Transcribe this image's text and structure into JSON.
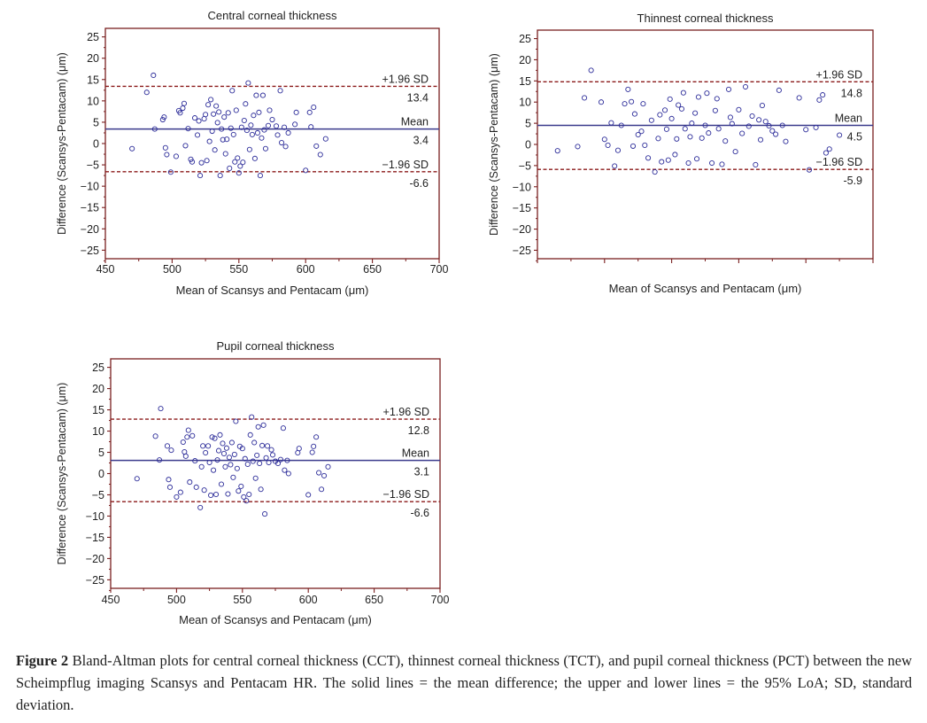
{
  "caption": {
    "label": "Figure 2",
    "text": "Bland-Altman plots for central corneal thickness (CCT), thinnest corneal thickness (TCT), and pupil corneal thickness (PCT) between the new Scheimpflug imaging Scansys and Pentacam HR. The solid lines = the mean difference; the upper and lower lines = the 95% LoA; SD, standard deviation."
  },
  "colors": {
    "frame": "#7a1f1f",
    "mean_line": "#3a3a8c",
    "loa_line": "#8b1a1a",
    "point": "#2e2e9a"
  },
  "chart_data": [
    {
      "type": "scatter",
      "title": "Central corneal thickness",
      "xlabel": "Mean of Scansys and Pentacam (μm)",
      "ylabel": "Difference (Scansys-Pentacam) (μm)",
      "xlim": [
        450,
        700
      ],
      "ylim": [
        -27,
        27
      ],
      "xticks": [
        450,
        500,
        550,
        600,
        650,
        700
      ],
      "xtick_labels": [
        "450",
        "500",
        "550",
        "600",
        "650",
        "700"
      ],
      "yticks": [
        25,
        20,
        15,
        10,
        5,
        0,
        -5,
        -10,
        -15,
        -20,
        -25
      ],
      "ytick_labels": [
        "25",
        "20",
        "15",
        "10",
        "5",
        "0",
        "−5",
        "−10",
        "−15",
        "−20",
        "−25"
      ],
      "grid": false,
      "lines": [
        {
          "kind": "upper",
          "y": 13.4,
          "label": "+1.96 SD",
          "value_label": "13.4"
        },
        {
          "kind": "mean",
          "y": 3.4,
          "label": "Mean",
          "value_label": "3.4"
        },
        {
          "kind": "lower",
          "y": -6.6,
          "label": "−1.96 SD",
          "value_label": "-6.6"
        }
      ],
      "points": [
        [
          470,
          -1.2
        ],
        [
          481,
          12
        ],
        [
          486,
          16
        ],
        [
          487,
          3.4
        ],
        [
          493,
          5.6
        ],
        [
          494,
          6.2
        ],
        [
          495,
          -1
        ],
        [
          496,
          -2.6
        ],
        [
          499,
          -6.7
        ],
        [
          503,
          -3
        ],
        [
          505,
          7.7
        ],
        [
          506,
          7.2
        ],
        [
          508,
          8.3
        ],
        [
          509,
          9.4
        ],
        [
          510,
          -0.5
        ],
        [
          512,
          3.5
        ],
        [
          514,
          -3.7
        ],
        [
          515,
          -4.3
        ],
        [
          517,
          6
        ],
        [
          519,
          2
        ],
        [
          520,
          5.3
        ],
        [
          521,
          -7.5
        ],
        [
          522,
          -4.5
        ],
        [
          524,
          5.8
        ],
        [
          525,
          6.8
        ],
        [
          526,
          -4
        ],
        [
          527,
          9.1
        ],
        [
          528,
          0.5
        ],
        [
          529,
          10.3
        ],
        [
          530,
          2.9
        ],
        [
          531,
          6.9
        ],
        [
          532,
          -1.5
        ],
        [
          533,
          8.8
        ],
        [
          534,
          4.9
        ],
        [
          535,
          7.4
        ],
        [
          536,
          -7.5
        ],
        [
          537,
          3.4
        ],
        [
          538,
          0.9
        ],
        [
          539,
          6.2
        ],
        [
          540,
          -2.4
        ],
        [
          541,
          1
        ],
        [
          542,
          7.2
        ],
        [
          543,
          -5.8
        ],
        [
          544,
          3.6
        ],
        [
          545,
          12.4
        ],
        [
          546,
          2.1
        ],
        [
          547,
          -4.3
        ],
        [
          548,
          7.8
        ],
        [
          549,
          -3.4
        ],
        [
          550,
          -6.9
        ],
        [
          551,
          -5.3
        ],
        [
          552,
          3.8
        ],
        [
          553,
          -4.4
        ],
        [
          554,
          5.4
        ],
        [
          555,
          9.3
        ],
        [
          556,
          3.1
        ],
        [
          557,
          14.2
        ],
        [
          558,
          -1.4
        ],
        [
          559,
          4.3
        ],
        [
          560,
          2.1
        ],
        [
          561,
          6.6
        ],
        [
          562,
          -3.5
        ],
        [
          563,
          11.3
        ],
        [
          564,
          2.5
        ],
        [
          565,
          7.3
        ],
        [
          566,
          -7.5
        ],
        [
          567,
          1.3
        ],
        [
          568,
          11.3
        ],
        [
          569,
          3.2
        ],
        [
          570,
          -1.2
        ],
        [
          572,
          4.2
        ],
        [
          573,
          7.8
        ],
        [
          575,
          5.6
        ],
        [
          578,
          4.1
        ],
        [
          579,
          2
        ],
        [
          581,
          12.4
        ],
        [
          582,
          0.2
        ],
        [
          584,
          3.8
        ],
        [
          585,
          -0.7
        ],
        [
          587,
          2.5
        ],
        [
          592,
          4.5
        ],
        [
          593,
          7.3
        ],
        [
          600,
          -6.3
        ],
        [
          603,
          7.3
        ],
        [
          604,
          3.9
        ],
        [
          606,
          8.5
        ],
        [
          608,
          -0.6
        ],
        [
          611,
          -2.6
        ],
        [
          615,
          1.1
        ]
      ]
    },
    {
      "type": "scatter",
      "title": "Thinnest corneal thickness",
      "xlabel": "Mean of Scansys and Pentacam (μm)",
      "ylabel": "Difference (Scansys-Pentacam) (μm)",
      "xlim": [
        0,
        1
      ],
      "ylim": [
        -27,
        27
      ],
      "xticks": [
        0,
        0.2,
        0.4,
        0.6,
        0.8,
        1.0
      ],
      "xtick_labels": [],
      "yticks": [
        25,
        20,
        15,
        10,
        5,
        0,
        -5,
        -10,
        -15,
        -20,
        -25
      ],
      "ytick_labels": [
        "25",
        "20",
        "15",
        "10",
        "5",
        "0",
        "−5",
        "−10",
        "−15",
        "−20",
        "−25"
      ],
      "grid": false,
      "lines": [
        {
          "kind": "upper",
          "y": 14.8,
          "label": "+1.96 SD",
          "value_label": "14.8"
        },
        {
          "kind": "mean",
          "y": 4.5,
          "label": "Mean",
          "value_label": "4.5"
        },
        {
          "kind": "lower",
          "y": -5.9,
          "label": "−1.96 SD",
          "value_label": "-5.9"
        }
      ],
      "points": [
        [
          0.06,
          -1.5
        ],
        [
          0.12,
          -0.5
        ],
        [
          0.14,
          11
        ],
        [
          0.16,
          17.5
        ],
        [
          0.19,
          10
        ],
        [
          0.2,
          1.2
        ],
        [
          0.21,
          -0.2
        ],
        [
          0.22,
          5.1
        ],
        [
          0.23,
          -5.1
        ],
        [
          0.24,
          -1.4
        ],
        [
          0.25,
          4.5
        ],
        [
          0.26,
          9.6
        ],
        [
          0.27,
          13
        ],
        [
          0.28,
          10.1
        ],
        [
          0.285,
          -0.4
        ],
        [
          0.29,
          7.2
        ],
        [
          0.3,
          2.3
        ],
        [
          0.31,
          3.1
        ],
        [
          0.315,
          9.6
        ],
        [
          0.32,
          -0.2
        ],
        [
          0.33,
          -3.2
        ],
        [
          0.34,
          5.7
        ],
        [
          0.35,
          -6.5
        ],
        [
          0.36,
          1.4
        ],
        [
          0.365,
          7
        ],
        [
          0.37,
          -4.1
        ],
        [
          0.38,
          8.1
        ],
        [
          0.385,
          3.6
        ],
        [
          0.39,
          -3.7
        ],
        [
          0.395,
          10.7
        ],
        [
          0.4,
          6.1
        ],
        [
          0.41,
          -2.4
        ],
        [
          0.415,
          1.3
        ],
        [
          0.42,
          9.3
        ],
        [
          0.43,
          8.4
        ],
        [
          0.435,
          12.2
        ],
        [
          0.44,
          3.7
        ],
        [
          0.45,
          -4.4
        ],
        [
          0.455,
          1.8
        ],
        [
          0.46,
          5
        ],
        [
          0.47,
          7.4
        ],
        [
          0.475,
          -3.4
        ],
        [
          0.48,
          11.2
        ],
        [
          0.49,
          1.5
        ],
        [
          0.5,
          4.5
        ],
        [
          0.505,
          12.1
        ],
        [
          0.51,
          2.7
        ],
        [
          0.52,
          -4.4
        ],
        [
          0.53,
          8
        ],
        [
          0.535,
          10.8
        ],
        [
          0.54,
          3.7
        ],
        [
          0.55,
          -4.7
        ],
        [
          0.56,
          0.8
        ],
        [
          0.57,
          13
        ],
        [
          0.575,
          6.4
        ],
        [
          0.58,
          4.9
        ],
        [
          0.59,
          -1.7
        ],
        [
          0.6,
          8.2
        ],
        [
          0.61,
          2.6
        ],
        [
          0.62,
          13.6
        ],
        [
          0.63,
          4.3
        ],
        [
          0.64,
          6.7
        ],
        [
          0.65,
          -4.8
        ],
        [
          0.66,
          5.8
        ],
        [
          0.665,
          1.1
        ],
        [
          0.67,
          9.2
        ],
        [
          0.68,
          5.4
        ],
        [
          0.69,
          4.4
        ],
        [
          0.7,
          3.2
        ],
        [
          0.71,
          2.4
        ],
        [
          0.72,
          12.8
        ],
        [
          0.73,
          4.5
        ],
        [
          0.74,
          0.7
        ],
        [
          0.78,
          11
        ],
        [
          0.8,
          3.5
        ],
        [
          0.81,
          -6
        ],
        [
          0.83,
          4
        ],
        [
          0.84,
          10.5
        ],
        [
          0.85,
          11.7
        ],
        [
          0.86,
          -2
        ],
        [
          0.87,
          -1.1
        ],
        [
          0.9,
          2.2
        ]
      ]
    },
    {
      "type": "scatter",
      "title": "Pupil corneal thickness",
      "xlabel": "Mean of Scansys and Pentacam (μm)",
      "ylabel": "Difference (Scansys-Pentacam) (μm)",
      "xlim": [
        450,
        700
      ],
      "ylim": [
        -27,
        27
      ],
      "xticks": [
        450,
        500,
        550,
        600,
        650,
        700
      ],
      "xtick_labels": [
        "450",
        "500",
        "550",
        "600",
        "650",
        "700"
      ],
      "yticks": [
        25,
        20,
        15,
        10,
        5,
        0,
        -5,
        -10,
        -15,
        -20,
        -25
      ],
      "ytick_labels": [
        "25",
        "20",
        "15",
        "10",
        "5",
        "0",
        "−5",
        "−10",
        "−15",
        "−20",
        "−25"
      ],
      "grid": false,
      "lines": [
        {
          "kind": "upper",
          "y": 12.8,
          "label": "+1.96 SD",
          "value_label": "12.8"
        },
        {
          "kind": "mean",
          "y": 3.1,
          "label": "Mean",
          "value_label": "3.1"
        },
        {
          "kind": "lower",
          "y": -6.6,
          "label": "−1.96 SD",
          "value_label": "-6.6"
        }
      ],
      "points": [
        [
          470,
          -1.2
        ],
        [
          484,
          8.8
        ],
        [
          487,
          3.2
        ],
        [
          488,
          15.3
        ],
        [
          493,
          6.5
        ],
        [
          494,
          -1.4
        ],
        [
          495,
          -3.2
        ],
        [
          496,
          5.5
        ],
        [
          500,
          -5.5
        ],
        [
          503,
          -4.4
        ],
        [
          505,
          7.4
        ],
        [
          506,
          5.1
        ],
        [
          507,
          4.1
        ],
        [
          508,
          8.6
        ],
        [
          509,
          10.2
        ],
        [
          510,
          -2
        ],
        [
          512,
          8.9
        ],
        [
          514,
          3
        ],
        [
          515,
          -3.2
        ],
        [
          518,
          -8
        ],
        [
          519,
          1.6
        ],
        [
          520,
          6.5
        ],
        [
          521,
          -3.9
        ],
        [
          522,
          4.9
        ],
        [
          524,
          6.5
        ],
        [
          525,
          2.6
        ],
        [
          526,
          -5.1
        ],
        [
          527,
          8.6
        ],
        [
          528,
          0.8
        ],
        [
          529,
          8.3
        ],
        [
          530,
          -4.9
        ],
        [
          531,
          3.2
        ],
        [
          532,
          5.4
        ],
        [
          533,
          9.1
        ],
        [
          534,
          -2.5
        ],
        [
          535,
          7.1
        ],
        [
          536,
          4.7
        ],
        [
          537,
          1.6
        ],
        [
          538,
          6
        ],
        [
          539,
          -4.8
        ],
        [
          540,
          3.8
        ],
        [
          541,
          2.1
        ],
        [
          542,
          7.3
        ],
        [
          543,
          -0.9
        ],
        [
          544,
          4.5
        ],
        [
          545,
          12.3
        ],
        [
          546,
          1.2
        ],
        [
          547,
          -4.1
        ],
        [
          548,
          6.4
        ],
        [
          549,
          -3
        ],
        [
          550,
          5.9
        ],
        [
          551,
          -5.5
        ],
        [
          552,
          3.5
        ],
        [
          553,
          -6.4
        ],
        [
          554,
          2.2
        ],
        [
          555,
          -4.9
        ],
        [
          556,
          9.1
        ],
        [
          557,
          13.3
        ],
        [
          558,
          2.9
        ],
        [
          559,
          7.3
        ],
        [
          560,
          -1.1
        ],
        [
          561,
          4.3
        ],
        [
          562,
          11
        ],
        [
          563,
          2.4
        ],
        [
          564,
          -3.7
        ],
        [
          565,
          6.6
        ],
        [
          566,
          11.4
        ],
        [
          567,
          -9.5
        ],
        [
          568,
          3.7
        ],
        [
          569,
          6.5
        ],
        [
          570,
          2.6
        ],
        [
          572,
          5.6
        ],
        [
          573,
          4.4
        ],
        [
          575,
          2.9
        ],
        [
          577,
          2.4
        ],
        [
          579,
          3.3
        ],
        [
          581,
          10.7
        ],
        [
          582,
          0.8
        ],
        [
          584,
          3.1
        ],
        [
          585,
          0
        ],
        [
          592,
          4.9
        ],
        [
          593,
          5.9
        ],
        [
          600,
          -5
        ],
        [
          603,
          5
        ],
        [
          604,
          6.4
        ],
        [
          606,
          8.6
        ],
        [
          608,
          0.2
        ],
        [
          610,
          -3.7
        ],
        [
          612,
          -0.5
        ],
        [
          615,
          1.6
        ]
      ]
    }
  ]
}
